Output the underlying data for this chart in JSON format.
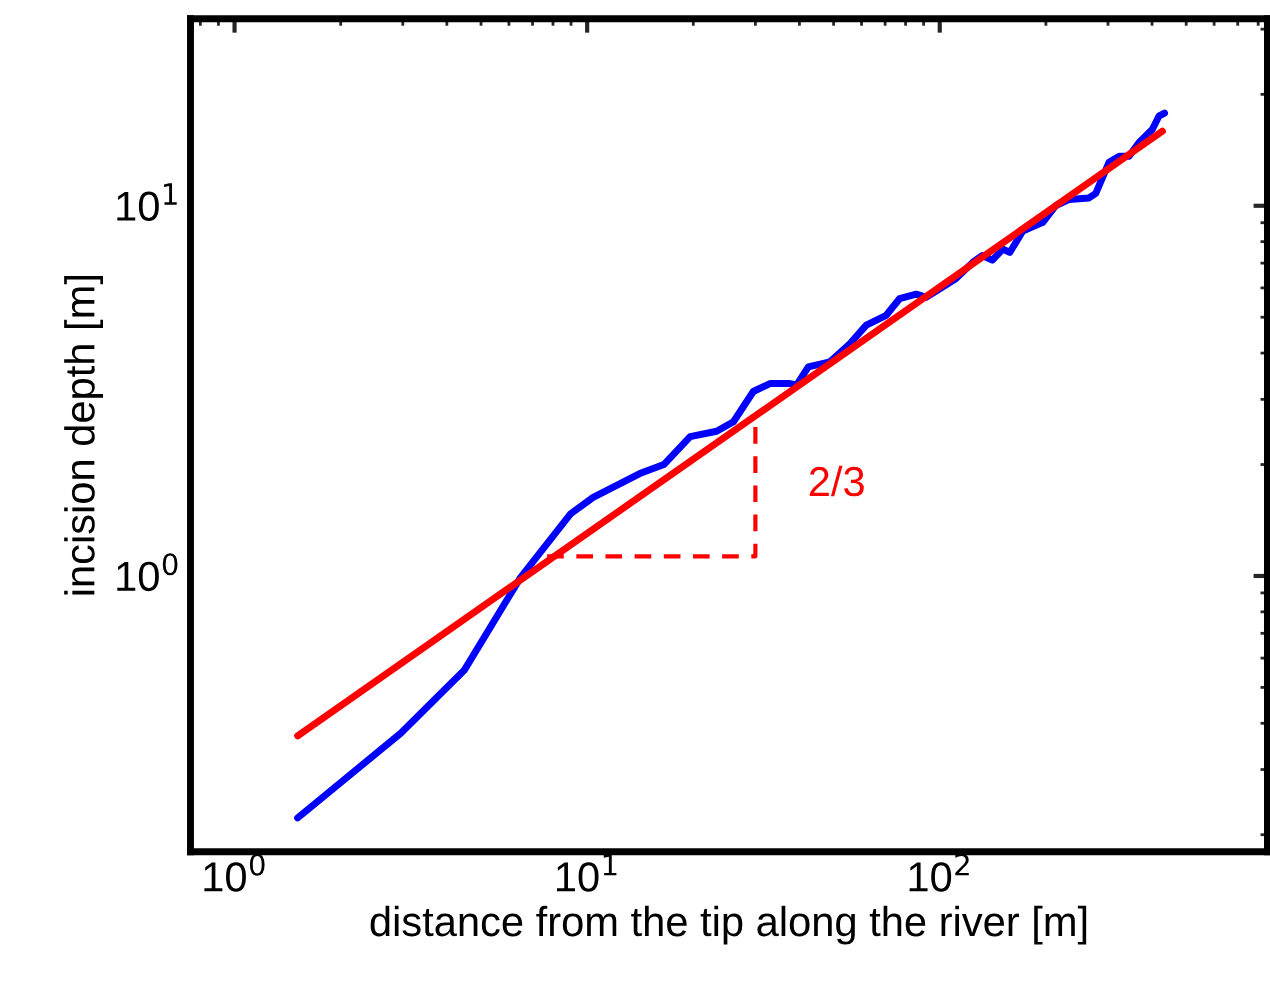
{
  "chart_data": {
    "type": "line",
    "xlabel": "distance from the tip along the river [m]",
    "ylabel": "incision depth [m]",
    "log": "xy",
    "xlim": [
      0.75,
      850
    ],
    "ylim": [
      0.18,
      32
    ],
    "xticks": [
      {
        "value": 1,
        "label": "10$^{0}$"
      },
      {
        "value": 10,
        "label": "10$^{1}$"
      },
      {
        "value": 100,
        "label": "10$^{2}$"
      }
    ],
    "yticks": [
      {
        "value": 1,
        "label": "10$^{0}$"
      },
      {
        "value": 10,
        "label": "10$^{1}$"
      }
    ],
    "grid": false,
    "legend": false,
    "series": [
      {
        "color": "#0000ff",
        "line_style": "solid",
        "x": [
          1.51,
          2.96,
          4.48,
          6.47,
          8.96,
          10.4,
          14.1,
          16.5,
          19.6,
          23.3,
          26.0,
          29.6,
          33.0,
          37.6,
          39.3,
          42.4,
          48.8,
          55.6,
          61.9,
          70.5,
          76.9,
          85.8,
          91.5,
          100,
          111,
          124,
          132,
          141,
          151,
          158,
          172,
          196,
          213,
          233,
          265,
          277,
          302,
          323,
          344,
          367,
          401,
          419,
          434
        ],
        "values": [
          0.222,
          0.376,
          0.556,
          0.99,
          1.47,
          1.63,
          1.89,
          2.0,
          2.38,
          2.46,
          2.61,
          3.15,
          3.31,
          3.31,
          3.28,
          3.67,
          3.79,
          4.24,
          4.76,
          5.06,
          5.61,
          5.77,
          5.66,
          5.97,
          6.35,
          7.03,
          7.34,
          7.13,
          7.64,
          7.48,
          8.55,
          9.02,
          10.0,
          10.4,
          10.5,
          10.8,
          13.1,
          13.6,
          13.6,
          14.8,
          16.1,
          17.5,
          17.8
        ]
      },
      {
        "color": "#ff0000",
        "line_style": "solid",
        "x": [
          1.51,
          428
        ],
        "values": [
          0.37,
          15.9
        ]
      },
      {
        "color": "#ff0000",
        "line_style": "dashed",
        "x": [
          7.7,
          30,
          30
        ],
        "values": [
          1.13,
          1.13,
          2.6
        ]
      }
    ],
    "annotations": [
      "2/3"
    ]
  }
}
